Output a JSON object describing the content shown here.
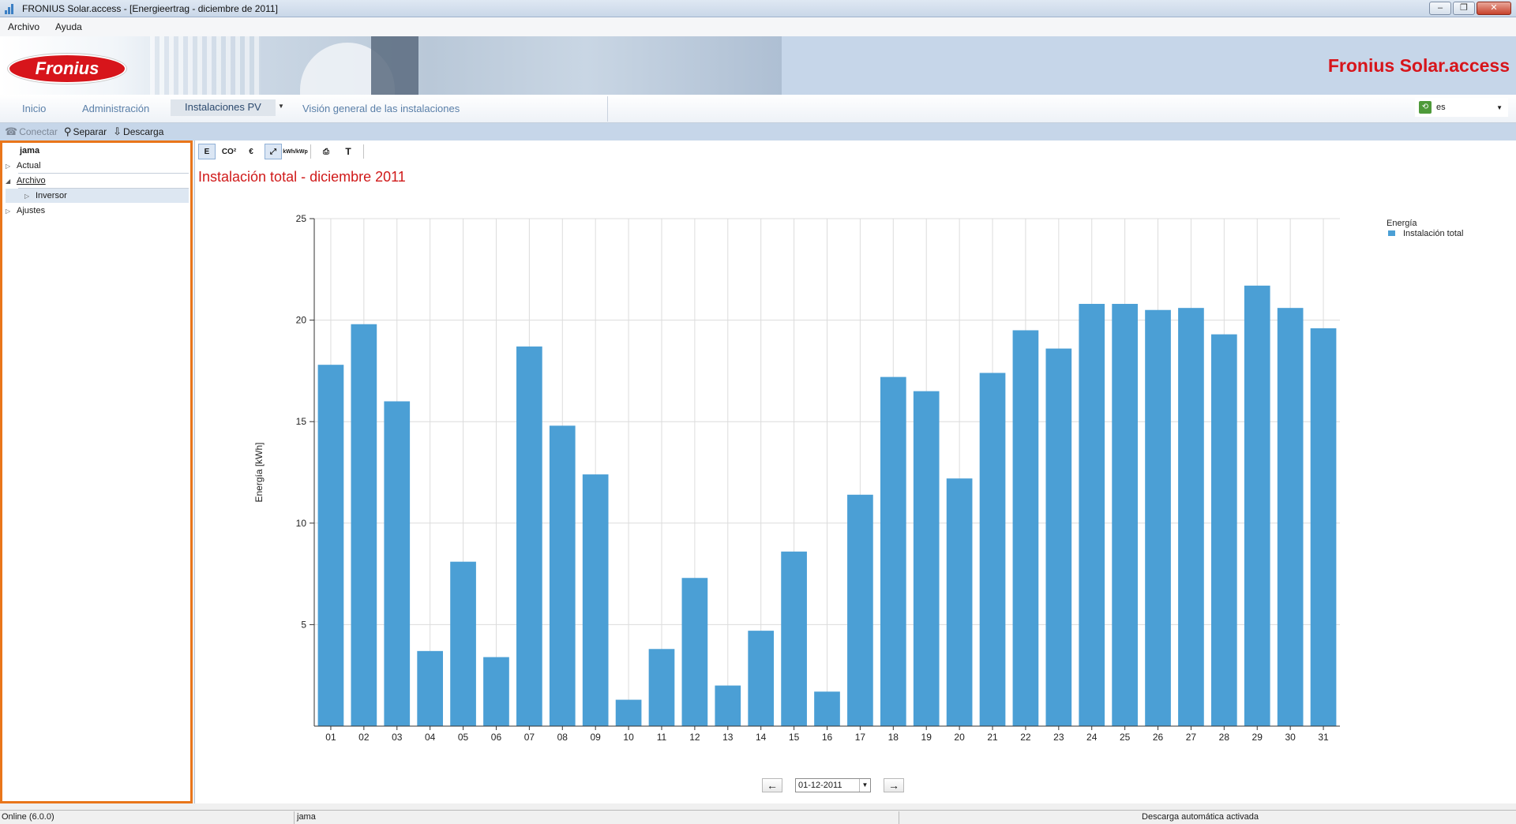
{
  "window": {
    "title": "FRONIUS Solar.access - [Energieertrag - diciembre de 2011]",
    "buttons": [
      "minimize",
      "restore",
      "close"
    ]
  },
  "menu": [
    "Archivo",
    "Ayuda"
  ],
  "banner": {
    "logo_text": "Fronius",
    "brand": "Fronius Solar.access",
    "brand_color": "#d7151b"
  },
  "nav": {
    "tabs": [
      {
        "label": "Inicio",
        "active": false
      },
      {
        "label": "Administración",
        "active": false
      },
      {
        "label": "Instalaciones PV",
        "active": true
      },
      {
        "label": "Visión general de las instalaciones",
        "active": false
      }
    ],
    "language": "es"
  },
  "actions": [
    {
      "label": "Conectar",
      "icon": "phone-icon",
      "enabled": false
    },
    {
      "label": "Separar",
      "icon": "disconnect-icon",
      "enabled": true
    },
    {
      "label": "Descarga",
      "icon": "download-icon",
      "enabled": true
    }
  ],
  "tree": {
    "root": "jama",
    "items": [
      {
        "label": "Actual",
        "expanded": false,
        "level": 0
      },
      {
        "label": "Archivo",
        "expanded": true,
        "level": 0
      },
      {
        "label": "Inversor",
        "expanded": false,
        "level": 1,
        "selected": true
      },
      {
        "label": "Ajustes",
        "expanded": false,
        "level": 0
      }
    ]
  },
  "chart_toolbar": [
    "E",
    "CO²",
    "€",
    "zoom",
    "kWh/kWp",
    "print",
    "T"
  ],
  "chart_data": {
    "type": "bar",
    "title": "Instalación total - diciembre 2011",
    "ylabel": "Energía [kWh]",
    "xlabel": "",
    "ylim": [
      0,
      25
    ],
    "yticks": [
      5,
      10,
      15,
      20,
      25
    ],
    "grid": true,
    "legend_title": "Energía",
    "legend_position": "top-right",
    "categories": [
      "01",
      "02",
      "03",
      "04",
      "05",
      "06",
      "07",
      "08",
      "09",
      "10",
      "11",
      "12",
      "13",
      "14",
      "15",
      "16",
      "17",
      "18",
      "19",
      "20",
      "21",
      "22",
      "23",
      "24",
      "25",
      "26",
      "27",
      "28",
      "29",
      "30",
      "31"
    ],
    "series": [
      {
        "name": "Instalación total",
        "color": "#4b9fd5",
        "values": [
          17.8,
          19.8,
          16.0,
          3.7,
          8.1,
          3.4,
          18.7,
          14.8,
          12.4,
          1.3,
          3.8,
          7.3,
          2.0,
          4.7,
          8.6,
          1.7,
          11.4,
          17.2,
          16.5,
          12.2,
          17.4,
          19.5,
          18.6,
          20.8,
          20.8,
          20.5,
          20.6,
          19.3,
          21.7,
          20.6,
          19.6
        ]
      }
    ]
  },
  "date_selector": {
    "value": "01-12-2011"
  },
  "status": {
    "left": "Online (6.0.0)",
    "middle": "jama",
    "right": "Descarga automática activada"
  }
}
